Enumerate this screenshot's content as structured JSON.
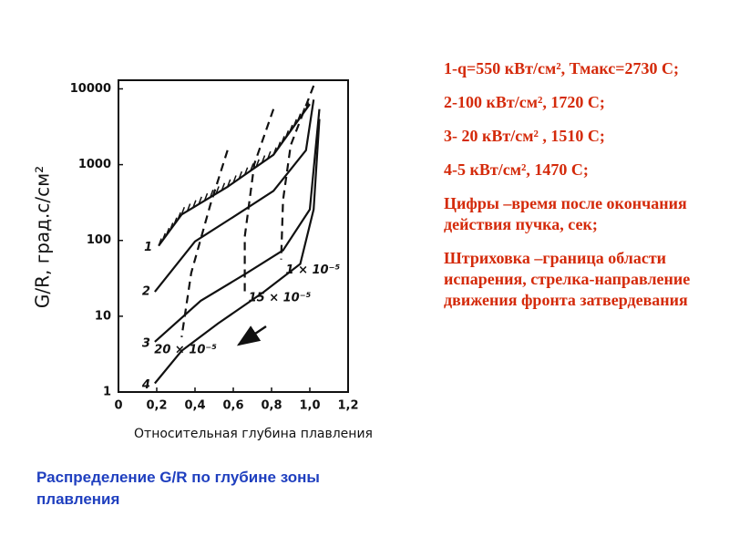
{
  "chart_data": {
    "type": "line",
    "log_y": true,
    "xlabel": "Относительная глубина плавления",
    "ylabel": "G/R, град.с/см²",
    "xlim": [
      0,
      1.2
    ],
    "ylim": [
      1,
      13000
    ],
    "xticks": [
      0,
      {
        "value": 0.2,
        "label": "0,2"
      },
      {
        "value": 0.4,
        "label": "0,4"
      },
      {
        "value": 0.6,
        "label": "0,6"
      },
      {
        "value": 0.8,
        "label": "0,8"
      },
      {
        "value": 1.0,
        "label": "1,0"
      },
      {
        "value": 1.2,
        "label": "1,2"
      }
    ],
    "yticks": [
      1,
      10,
      100,
      1000,
      10000
    ],
    "series": [
      {
        "name": "1",
        "color": "#111111",
        "hatched": true,
        "x": [
          0.21,
          0.33,
          0.57,
          0.81,
          1.0
        ],
        "values": [
          85,
          220,
          510,
          1350,
          6300
        ]
      },
      {
        "name": "2",
        "color": "#111111",
        "x": [
          0.19,
          0.4,
          0.62,
          0.81,
          0.98,
          1.02
        ],
        "values": [
          21,
          97,
          220,
          450,
          1550,
          7200
        ]
      },
      {
        "name": "3",
        "color": "#111111",
        "x": [
          0.19,
          0.43,
          0.67,
          0.86,
          1.0,
          1.05
        ],
        "values": [
          4.6,
          16,
          37,
          74,
          257,
          5400
        ]
      },
      {
        "name": "4",
        "color": "#111111",
        "x": [
          0.19,
          0.33,
          0.52,
          0.76,
          0.95,
          1.02,
          1.05
        ],
        "values": [
          1.3,
          3.5,
          8,
          21,
          49,
          257,
          4000
        ]
      },
      {
        "name": "1 × 10⁻⁵",
        "color": "#111111",
        "dashed": true,
        "x": [
          1.02,
          0.9,
          0.86,
          0.85
        ],
        "values": [
          11000,
          1800,
          340,
          56
        ]
      },
      {
        "name": "15 × 10⁻⁵",
        "color": "#111111",
        "dashed": true,
        "x": [
          0.81,
          0.71,
          0.66,
          0.66
        ],
        "values": [
          5400,
          1020,
          112,
          21
        ]
      },
      {
        "name": "20 × 10⁻⁵",
        "color": "#111111",
        "dashed": true,
        "x": [
          0.57,
          0.48,
          0.38,
          0.33
        ],
        "values": [
          1550,
          295,
          37,
          5.3
        ]
      }
    ]
  },
  "notes": [
    "1-q=550 кВт/см², Тмакс=2730 С;",
    "2-100 кВт/см², 1720 С;",
    "3- 20 кВт/см² , 1510 С;",
    "4-5 кВт/см², 1470 С;",
    "Цифры –время после окончания действия пучка, сек;",
    "Штриховка –граница области испарения, стрелка-направление движения фронта затвердевания"
  ],
  "caption": "Распределение G/R по глубине зоны плавления"
}
